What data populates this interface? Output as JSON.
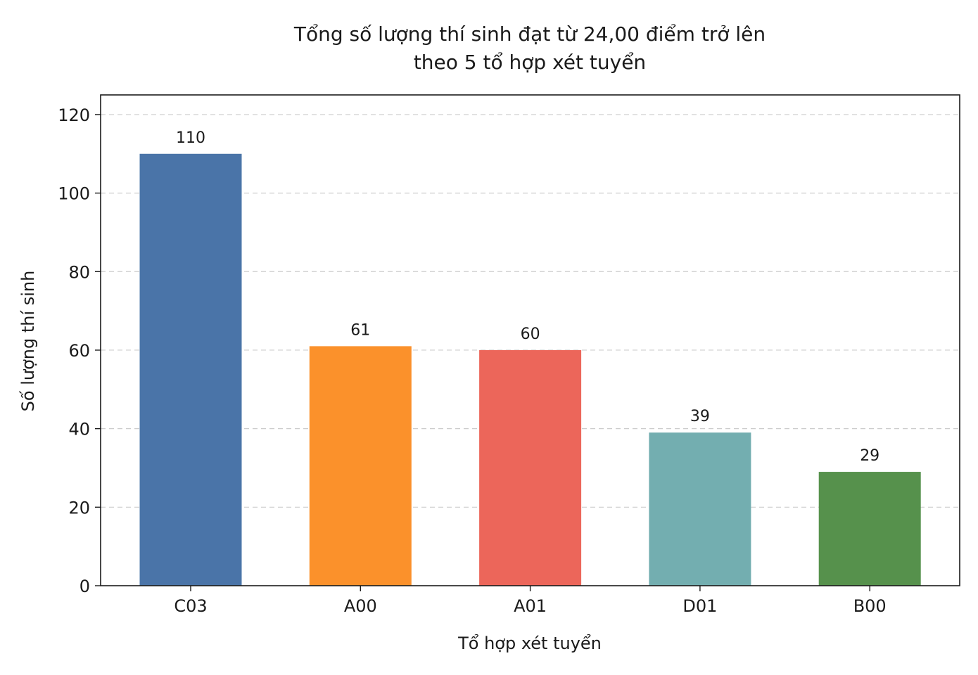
{
  "chart_data": {
    "type": "bar",
    "title_lines": [
      "Tổng số lượng thí sinh đạt từ 24,00 điểm trở lên",
      "theo 5 tổ hợp xét tuyển"
    ],
    "xlabel": "Tổ hợp xét tuyển",
    "ylabel": "Số lượng thí sinh",
    "categories": [
      "C03",
      "A00",
      "A01",
      "D01",
      "B00"
    ],
    "values": [
      110,
      61,
      60,
      39,
      29
    ],
    "colors": [
      "#4a74a8",
      "#fb912b",
      "#ec665a",
      "#73aeb0",
      "#56914c"
    ],
    "ylim": [
      0,
      125
    ],
    "yticks": [
      0,
      20,
      40,
      60,
      80,
      100,
      120
    ],
    "grid": true
  }
}
